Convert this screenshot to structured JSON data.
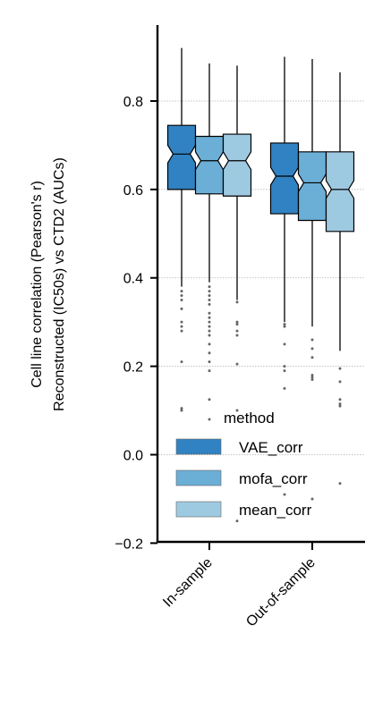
{
  "chart_data": {
    "type": "boxplot",
    "ylabel_line1": "Cell line correlation (Pearson's r)",
    "ylabel_line2": "Reconstructed (IC50s) vs CTD2 (AUCs)",
    "ylim": [
      -0.2,
      0.97
    ],
    "yticks": [
      "−0.2",
      "0.0",
      "0.2",
      "0.4",
      "0.6",
      "0.8"
    ],
    "ytick_values": [
      -0.2,
      0.0,
      0.2,
      0.4,
      0.6,
      0.8
    ],
    "grid": "horizontal-dotted",
    "categories": [
      "In-sample",
      "Out-of-sample"
    ],
    "legend": {
      "title": "method",
      "placement": "lower-right"
    },
    "series": [
      {
        "name": "VAE_corr",
        "color": "#3182c2",
        "boxes": [
          {
            "whisker_low": 0.38,
            "q1": 0.6,
            "median": 0.68,
            "q3": 0.745,
            "whisker_high": 0.92,
            "outliers": [
              0.37,
              0.36,
              0.35,
              0.33,
              0.3,
              0.29,
              0.28,
              0.21,
              0.105,
              0.1
            ]
          },
          {
            "whisker_low": 0.3,
            "q1": 0.545,
            "median": 0.63,
            "q3": 0.705,
            "whisker_high": 0.9,
            "outliers": [
              0.295,
              0.29,
              0.25,
              0.2,
              0.19,
              0.15,
              -0.09
            ]
          }
        ]
      },
      {
        "name": "mofa_corr",
        "color": "#6baed6",
        "boxes": [
          {
            "whisker_low": 0.39,
            "q1": 0.59,
            "median": 0.665,
            "q3": 0.72,
            "whisker_high": 0.885,
            "outliers": [
              0.38,
              0.37,
              0.36,
              0.35,
              0.34,
              0.32,
              0.31,
              0.3,
              0.29,
              0.28,
              0.27,
              0.25,
              0.23,
              0.21,
              0.19,
              0.125,
              0.08
            ]
          },
          {
            "whisker_low": 0.29,
            "q1": 0.53,
            "median": 0.615,
            "q3": 0.685,
            "whisker_high": 0.895,
            "outliers": [
              0.26,
              0.24,
              0.22,
              0.18,
              0.175,
              0.17,
              -0.1
            ]
          }
        ]
      },
      {
        "name": "mean_corr",
        "color": "#9ecae1",
        "boxes": [
          {
            "whisker_low": 0.35,
            "q1": 0.585,
            "median": 0.665,
            "q3": 0.725,
            "whisker_high": 0.88,
            "outliers": [
              0.345,
              0.3,
              0.295,
              0.28,
              0.27,
              0.205,
              0.1,
              -0.15
            ]
          },
          {
            "whisker_low": 0.235,
            "q1": 0.505,
            "median": 0.6,
            "q3": 0.685,
            "whisker_high": 0.865,
            "outliers": [
              0.195,
              0.165,
              0.125,
              0.115,
              0.11,
              -0.065
            ]
          }
        ]
      }
    ]
  }
}
